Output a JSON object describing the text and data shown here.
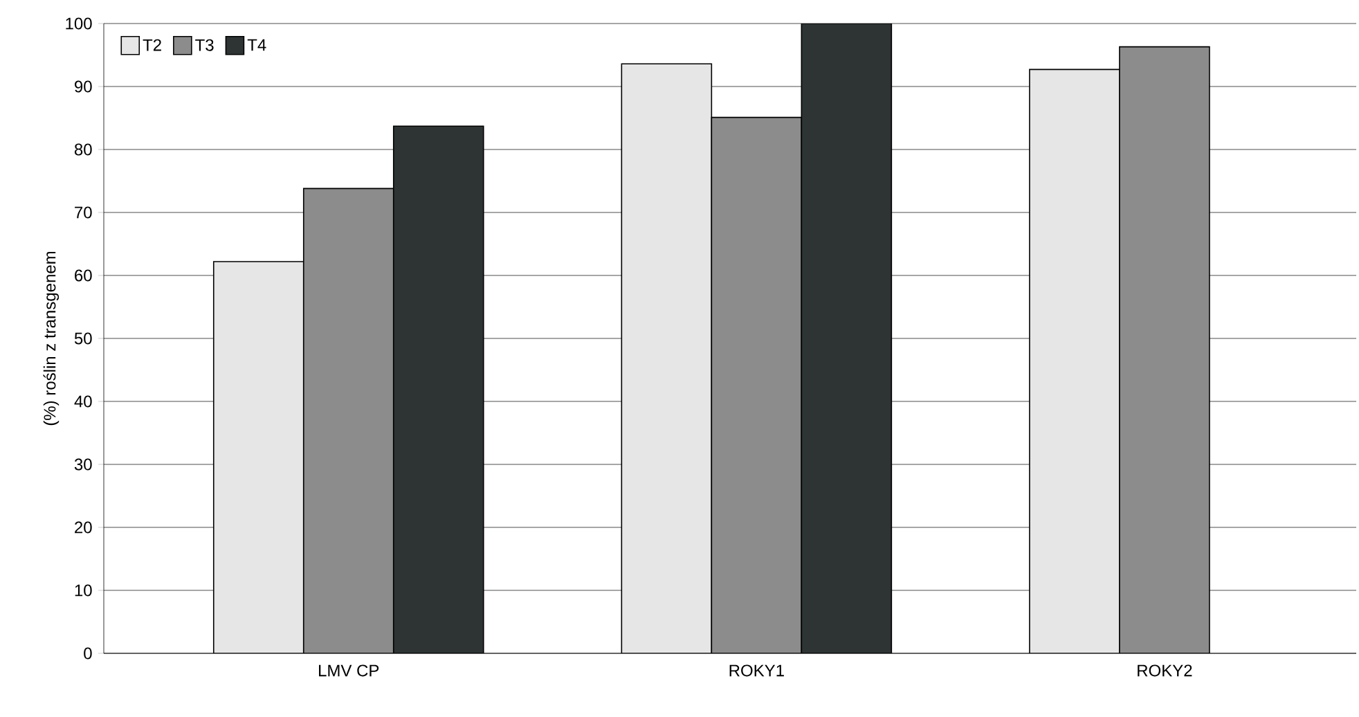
{
  "chart_data": {
    "type": "bar",
    "ylabel": "(%) roślin z transgenem",
    "categories": [
      "LMV CP",
      "ROKY1",
      "ROKY2"
    ],
    "series": [
      {
        "name": "T2",
        "color": "#e6e6e6",
        "values": [
          62.2,
          93.6,
          92.7
        ]
      },
      {
        "name": "T3",
        "color": "#8c8c8c",
        "values": [
          73.8,
          85.1,
          96.3
        ]
      },
      {
        "name": "T4",
        "color": "#2e3434",
        "values": [
          83.7,
          100,
          null
        ]
      }
    ],
    "ylim": [
      0,
      100
    ],
    "yticks": [
      0,
      10,
      20,
      30,
      40,
      50,
      60,
      70,
      80,
      90,
      100
    ],
    "grid": "y",
    "legend": "top left"
  }
}
